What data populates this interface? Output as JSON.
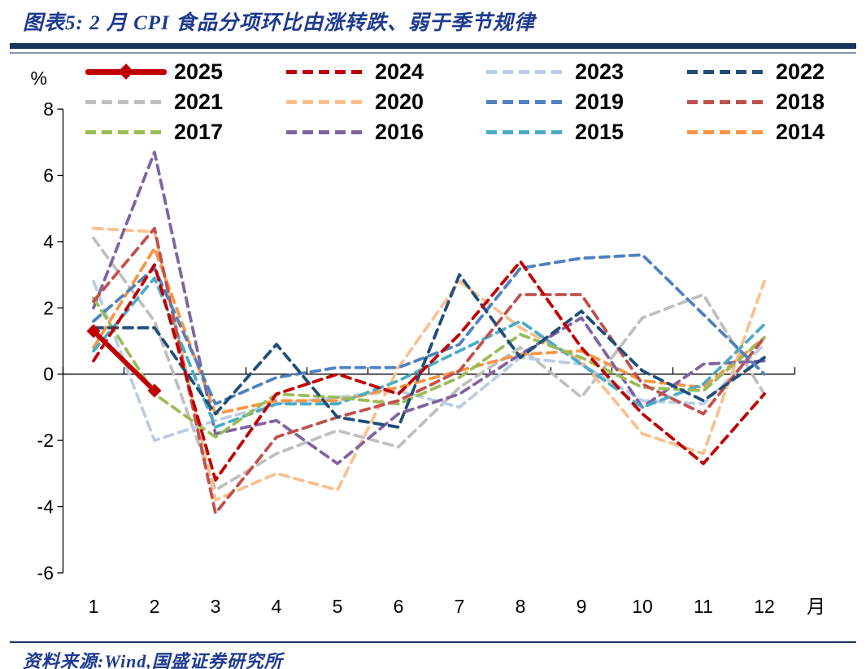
{
  "header": {
    "title": "图表5: 2 月 CPI 食品分项环比由涨转跌、弱于季节规律"
  },
  "footer": {
    "source": "资料来源:Wind,国盛证券研究所"
  },
  "chart_data": {
    "type": "line",
    "title": "图表5: 2 月 CPI 食品分项环比由涨转跌、弱于季节规律",
    "unit_label": "%",
    "x_axis_label": "月",
    "categories": [
      1,
      2,
      3,
      4,
      5,
      6,
      7,
      8,
      9,
      10,
      11,
      12
    ],
    "x_tick_labels": [
      "1",
      "2",
      "3",
      "4",
      "5",
      "6",
      "7",
      "8",
      "9",
      "10",
      "11",
      "12"
    ],
    "y_ticks": [
      8,
      6,
      4,
      2,
      0,
      -2,
      -4,
      -6
    ],
    "ylim": [
      -6,
      8
    ],
    "grid": "off",
    "legend_position": "top",
    "series": [
      {
        "name": "2025",
        "color": "#C00000",
        "style": "solid",
        "marker": "diamond",
        "values": [
          1.3,
          -0.5,
          null,
          null,
          null,
          null,
          null,
          null,
          null,
          null,
          null,
          null
        ]
      },
      {
        "name": "2024",
        "color": "#C00000",
        "style": "dashed",
        "values": [
          0.4,
          3.3,
          -3.2,
          -0.6,
          0.0,
          -0.6,
          1.2,
          3.4,
          0.8,
          -1.2,
          -2.7,
          -0.6
        ]
      },
      {
        "name": "2023",
        "color": "#B9CDE5",
        "style": "dashed",
        "values": [
          2.8,
          -2.0,
          -1.4,
          -0.9,
          -0.7,
          -0.5,
          -1.0,
          0.5,
          0.3,
          -0.8,
          -0.9,
          0.9
        ]
      },
      {
        "name": "2022",
        "color": "#1F4E79",
        "style": "dashed",
        "values": [
          1.4,
          1.4,
          -1.2,
          0.9,
          -1.3,
          -1.6,
          3.0,
          0.5,
          1.9,
          0.1,
          -0.8,
          0.5
        ]
      },
      {
        "name": "2021",
        "color": "#BFBFBF",
        "style": "dashed",
        "values": [
          4.1,
          1.6,
          -3.5,
          -2.4,
          -1.7,
          -2.2,
          -0.4,
          0.8,
          -0.7,
          1.7,
          2.4,
          -0.6
        ]
      },
      {
        "name": "2020",
        "color": "#FAC090",
        "style": "dashed",
        "values": [
          4.4,
          4.3,
          -3.8,
          -3.0,
          -3.5,
          0.2,
          2.8,
          1.4,
          0.4,
          -1.8,
          -2.4,
          2.8
        ]
      },
      {
        "name": "2019",
        "color": "#4F81BD",
        "style": "dashed",
        "values": [
          1.6,
          3.2,
          -0.9,
          -0.1,
          0.2,
          0.2,
          0.9,
          3.2,
          3.5,
          3.6,
          1.8,
          0.0
        ]
      },
      {
        "name": "2018",
        "color": "#C0504D",
        "style": "dashed",
        "values": [
          2.2,
          4.4,
          -4.2,
          -1.9,
          -1.3,
          -0.8,
          0.1,
          2.4,
          2.4,
          -0.3,
          -1.2,
          1.1
        ]
      },
      {
        "name": "2017",
        "color": "#9BBB59",
        "style": "dashed",
        "values": [
          2.3,
          -0.6,
          -1.9,
          -0.6,
          -0.7,
          -0.9,
          -0.1,
          1.2,
          0.5,
          -0.4,
          -0.5,
          1.1
        ]
      },
      {
        "name": "2016",
        "color": "#8064A2",
        "style": "dashed",
        "values": [
          2.0,
          6.7,
          -1.8,
          -1.4,
          -2.7,
          -1.2,
          -0.6,
          0.6,
          1.7,
          -1.0,
          0.3,
          0.4
        ]
      },
      {
        "name": "2015",
        "color": "#4BACC6",
        "style": "dashed",
        "values": [
          0.7,
          2.9,
          -1.6,
          -0.9,
          -0.9,
          -0.2,
          0.7,
          1.6,
          0.3,
          -1.0,
          -0.3,
          1.5
        ]
      },
      {
        "name": "2014",
        "color": "#F79646",
        "style": "dashed",
        "values": [
          0.8,
          3.8,
          -1.2,
          -0.8,
          -0.8,
          -0.4,
          0.1,
          0.6,
          0.7,
          -0.2,
          -0.4,
          1.1
        ]
      }
    ],
    "draw_order": [
      "2021",
      "2023",
      "2020",
      "2014",
      "2016",
      "2015",
      "2017",
      "2018",
      "2019",
      "2022",
      "2024",
      "2025"
    ]
  },
  "layout_note_values_visible_only": true
}
